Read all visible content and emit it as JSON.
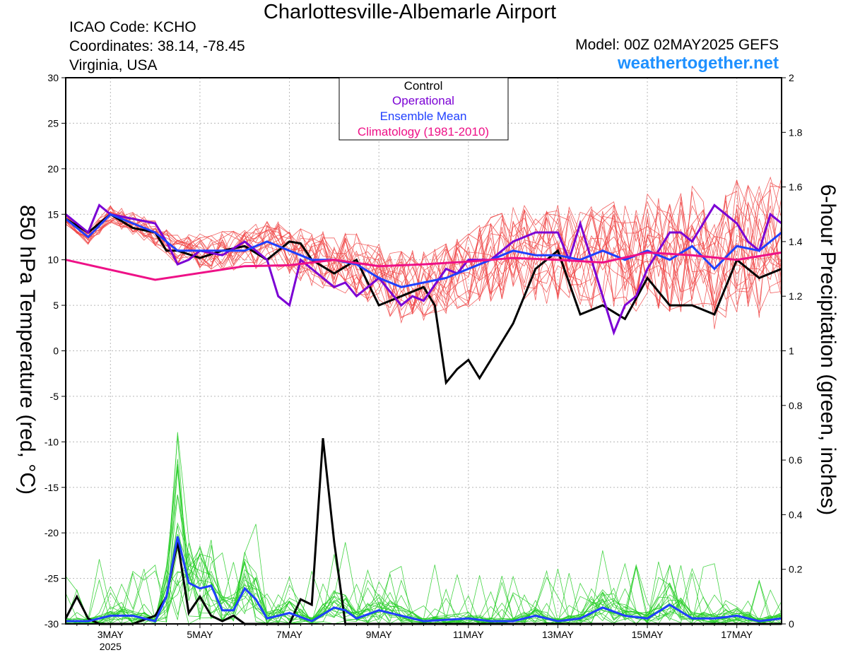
{
  "header": {
    "title": "Charlottesville-Albemarle Airport",
    "icao": "ICAO Code: KCHO",
    "coordinates": "Coordinates: 38.14, -78.45",
    "region": "Virginia, USA",
    "model": "Model: 00Z 02MAY2025 GEFS",
    "site": "weathertogether.net"
  },
  "colors": {
    "control": "#000000",
    "operational": "#7b00d4",
    "ensemble_mean": "#1f3fff",
    "climatology": "#ee1187",
    "members_temp": "#f04545",
    "members_precip": "#22cc22"
  },
  "chart_data": {
    "type": "line",
    "xlabel": "",
    "ylabel": "850 hPa Temperature (red, °C)",
    "y2label": "6-hour Precipitation (green, inches)",
    "x_unit": "days since 00Z 2 May 2025",
    "x_range": [
      0.0,
      16.0
    ],
    "x_ticks": [
      {
        "x": 1,
        "label": "3MAY",
        "sub": "2025"
      },
      {
        "x": 3,
        "label": "5MAY",
        "sub": ""
      },
      {
        "x": 5,
        "label": "7MAY",
        "sub": ""
      },
      {
        "x": 7,
        "label": "9MAY",
        "sub": ""
      },
      {
        "x": 9,
        "label": "11MAY",
        "sub": ""
      },
      {
        "x": 11,
        "label": "13MAY",
        "sub": ""
      },
      {
        "x": 13,
        "label": "15MAY",
        "sub": ""
      },
      {
        "x": 15,
        "label": "17MAY",
        "sub": ""
      }
    ],
    "ylim": [
      -30,
      30
    ],
    "yticks": [
      30,
      25,
      20,
      15,
      10,
      5,
      0,
      -5,
      -10,
      -15,
      -20,
      -25,
      -30
    ],
    "y2lim": [
      0,
      2
    ],
    "y2ticks": [
      2,
      1.8,
      1.6,
      1.4,
      1.2,
      1,
      0.8,
      0.6,
      0.4,
      0.2,
      0
    ],
    "grid": true,
    "legend": {
      "placement": "top-center",
      "entries": [
        {
          "label": "Control",
          "color": "#000000"
        },
        {
          "label": "Operational",
          "color": "#7b00d4"
        },
        {
          "label": "Ensemble Mean",
          "color": "#1f3fff"
        },
        {
          "label": "Climatology (1981-2010)",
          "color": "#ee1187"
        }
      ]
    },
    "temperature_series": [
      {
        "name": "Control",
        "x": [
          0,
          0.5,
          1,
          1.5,
          2,
          2.25,
          2.5,
          3,
          3.5,
          4,
          4.5,
          5,
          5.25,
          5.5,
          6,
          6.5,
          7,
          7.5,
          8,
          8.25,
          8.5,
          8.75,
          9,
          9.25,
          9.5,
          10,
          10.5,
          11,
          11.5,
          12,
          12.5,
          13,
          13.5,
          14,
          14.5,
          15,
          15.5,
          16
        ],
        "y": [
          14.5,
          13,
          15,
          13.5,
          13,
          11,
          11,
          10.2,
          11,
          11.5,
          10,
          12,
          11.8,
          10,
          8.5,
          10,
          5,
          6,
          7,
          5,
          -3.5,
          -2,
          -1,
          -3,
          -1,
          3,
          9,
          11,
          4,
          5,
          3.5,
          8,
          5,
          5,
          4,
          10,
          8,
          9
        ]
      },
      {
        "name": "Operational",
        "x": [
          0,
          0.5,
          0.75,
          1,
          1.5,
          2,
          2.25,
          2.5,
          2.75,
          3,
          3.5,
          4,
          4.25,
          4.5,
          4.75,
          5,
          5.25,
          5.5,
          6,
          6.25,
          6.5,
          7,
          7.5,
          7.75,
          8,
          8.5,
          8.75,
          9,
          9.5,
          10,
          10.5,
          11,
          11.25,
          11.5,
          12,
          12.25,
          12.5,
          12.75,
          13,
          13.25,
          13.5,
          13.75,
          14,
          14.5,
          15,
          15.25,
          15.5,
          15.75,
          16
        ],
        "y": [
          15,
          13,
          16,
          15,
          14.5,
          14,
          12,
          9.5,
          10,
          11,
          10.5,
          12,
          11,
          10,
          6,
          5,
          10,
          9,
          7,
          7.5,
          6,
          8,
          5,
          6,
          5.5,
          9,
          8.5,
          10,
          10,
          12,
          13,
          13,
          10,
          14,
          6,
          2,
          5,
          6,
          9,
          11,
          13,
          13,
          12,
          16,
          14,
          12,
          11,
          15,
          14
        ]
      },
      {
        "name": "Ensemble Mean",
        "x": [
          0,
          0.5,
          1,
          1.5,
          2,
          2.5,
          3,
          3.5,
          4,
          4.5,
          5,
          5.5,
          6,
          6.5,
          7,
          7.5,
          8,
          8.5,
          9,
          9.5,
          10,
          10.5,
          11,
          11.5,
          12,
          12.5,
          13,
          13.5,
          14,
          14.5,
          15,
          15.5,
          16
        ],
        "y": [
          14.5,
          12.5,
          15,
          14,
          13,
          11,
          11,
          11,
          11,
          12,
          11,
          10,
          10,
          9.5,
          8,
          7,
          7.5,
          8,
          9,
          10,
          11,
          10.5,
          10.5,
          10,
          11,
          10,
          11,
          10,
          11.5,
          9,
          11.5,
          11,
          13
        ]
      },
      {
        "name": "Climatology (1981-2010)",
        "x": [
          0,
          2,
          4,
          5,
          6,
          7,
          8,
          9,
          10,
          11,
          12,
          13,
          14,
          15,
          16
        ],
        "y": [
          10,
          7.8,
          9.3,
          9.4,
          10,
          9.3,
          9.5,
          9.8,
          10.2,
          10,
          9.7,
          10.8,
          10.5,
          10,
          10.8
        ]
      }
    ],
    "precipitation_series": [
      {
        "name": "Control",
        "x": [
          0,
          0.25,
          0.5,
          0.75,
          1,
          1.5,
          2,
          2.25,
          2.5,
          2.75,
          3,
          3.25,
          3.5,
          3.75,
          4,
          4.5,
          5,
          5.25,
          5.5,
          5.75,
          6,
          6.25,
          6.5,
          7,
          7.5,
          8,
          16
        ],
        "y": [
          0.02,
          0.1,
          0.02,
          0,
          0,
          0,
          0.03,
          0.1,
          0.3,
          0.04,
          0.1,
          0.03,
          0.01,
          0.03,
          0,
          0,
          0,
          0.09,
          0.07,
          0.68,
          0.3,
          0,
          0,
          0,
          0,
          0,
          0
        ]
      },
      {
        "name": "Ensemble Mean",
        "x": [
          0,
          0.5,
          1,
          1.5,
          2,
          2.25,
          2.5,
          2.75,
          3,
          3.25,
          3.5,
          3.75,
          4,
          4.25,
          4.5,
          5,
          5.5,
          6,
          6.25,
          6.5,
          7,
          8,
          9,
          9.5,
          10,
          10.5,
          11,
          11.5,
          12,
          12.5,
          13,
          13.5,
          14,
          14.5,
          15,
          15.5,
          16
        ],
        "y": [
          0.01,
          0.01,
          0.03,
          0.03,
          0.01,
          0.1,
          0.32,
          0.15,
          0.13,
          0.14,
          0.05,
          0.05,
          0.13,
          0.09,
          0.02,
          0.04,
          0.01,
          0.06,
          0.05,
          0.02,
          0.05,
          0.01,
          0.02,
          0.01,
          0.01,
          0.03,
          0.01,
          0.02,
          0.06,
          0.03,
          0.02,
          0.07,
          0.02,
          0.02,
          0.03,
          0.01,
          0.02
        ]
      }
    ]
  }
}
